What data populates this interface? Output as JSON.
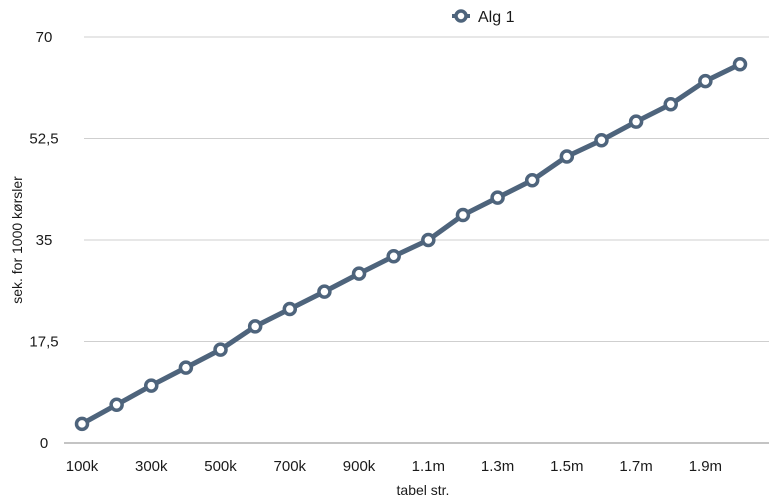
{
  "chart_data": {
    "type": "line",
    "title": "",
    "xlabel": "tabel str.",
    "ylabel": "sek. for 1000 kørsler",
    "ylim": [
      0,
      70
    ],
    "yticks": [
      0,
      17.5,
      35,
      52.5,
      70
    ],
    "ytick_labels": [
      "0",
      "17,5",
      "35",
      "52,5",
      "70"
    ],
    "xtick_labels": [
      "100k",
      "300k",
      "500k",
      "700k",
      "900k",
      "1.1m",
      "1.3m",
      "1.5m",
      "1.7m",
      "1.9m"
    ],
    "x": [
      "100k",
      "200k",
      "300k",
      "400k",
      "500k",
      "600k",
      "700k",
      "800k",
      "900k",
      "1m",
      "1.1m",
      "1.2m",
      "1.3m",
      "1.4m",
      "1.5m",
      "1.6m",
      "1.7m",
      "1.8m",
      "1.9m",
      "2m"
    ],
    "grid": true,
    "legend_position": "top-center",
    "series": [
      {
        "name": "Alg 1",
        "color": "#4e647c",
        "values": [
          3.3,
          6.6,
          9.9,
          13.0,
          16.1,
          20.1,
          23.1,
          26.1,
          29.2,
          32.2,
          35.0,
          39.3,
          42.3,
          45.3,
          49.4,
          52.2,
          55.4,
          58.4,
          62.4,
          65.3
        ]
      }
    ]
  }
}
